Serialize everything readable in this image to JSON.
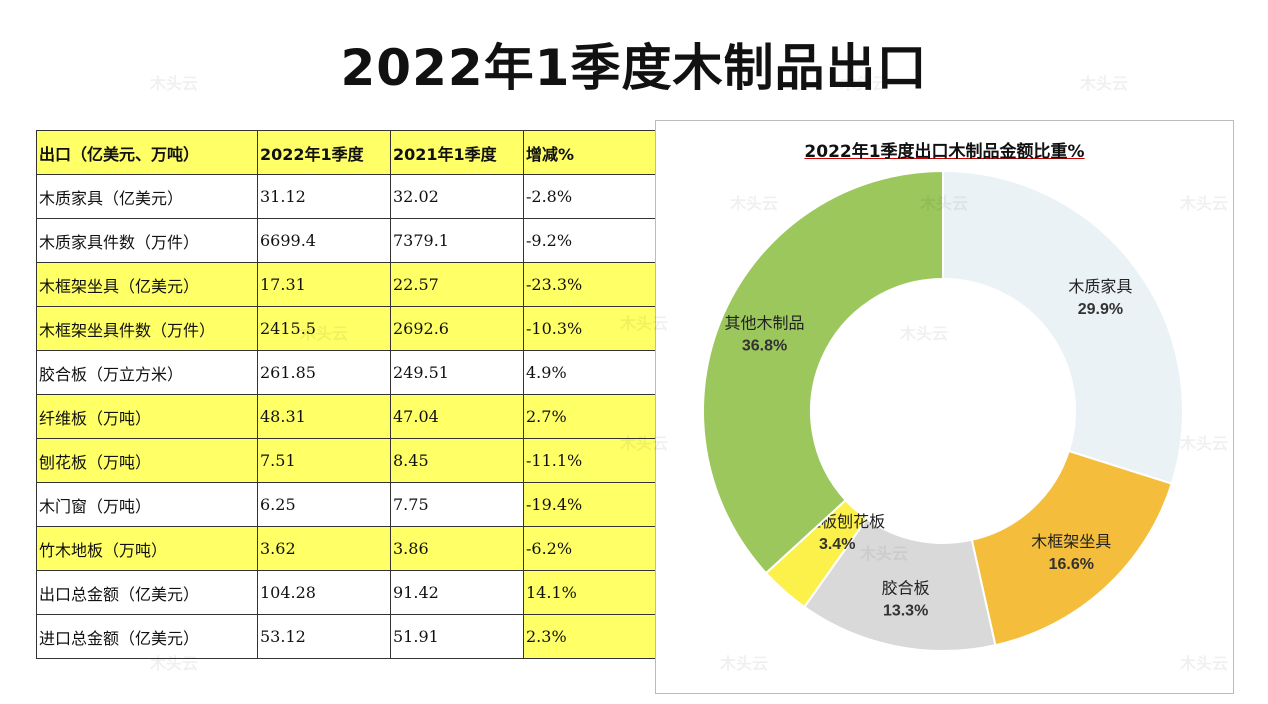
{
  "title": "2022年1季度木制品出口",
  "watermark": "木头云",
  "table": {
    "headers": [
      "出口（亿美元、万吨）",
      "2022年1季度",
      "2021年1季度",
      "增减%"
    ],
    "rows": [
      {
        "cells": [
          "木质家具（亿美元）",
          "31.12",
          "32.02",
          "-2.8%"
        ],
        "highlight": "none"
      },
      {
        "cells": [
          "木质家具件数（万件）",
          "6699.4",
          "7379.1",
          "-9.2%"
        ],
        "highlight": "none"
      },
      {
        "cells": [
          "木框架坐具（亿美元）",
          "17.31",
          "22.57",
          "-23.3%"
        ],
        "highlight": "row"
      },
      {
        "cells": [
          "木框架坐具件数（万件）",
          "2415.5",
          "2692.6",
          "-10.3%"
        ],
        "highlight": "row"
      },
      {
        "cells": [
          "胶合板（万立方米）",
          "261.85",
          "249.51",
          "4.9%"
        ],
        "highlight": "none"
      },
      {
        "cells": [
          "纤维板（万吨）",
          "48.31",
          "47.04",
          "2.7%"
        ],
        "highlight": "row"
      },
      {
        "cells": [
          "刨花板（万吨）",
          "7.51",
          "8.45",
          "-11.1%"
        ],
        "highlight": "row"
      },
      {
        "cells": [
          "木门窗（万吨）",
          "6.25",
          "7.75",
          "-19.4%"
        ],
        "highlight": "last"
      },
      {
        "cells": [
          "竹木地板（万吨）",
          "3.62",
          "3.86",
          "-6.2%"
        ],
        "highlight": "row"
      },
      {
        "cells": [
          "出口总金额（亿美元）",
          "104.28",
          "91.42",
          "14.1%"
        ],
        "highlight": "last"
      },
      {
        "cells": [
          "进口总金额（亿美元）",
          "53.12",
          "51.91",
          "2.3%"
        ],
        "highlight": "last"
      }
    ],
    "highlight_color": "#ffff66"
  },
  "chart_data": {
    "type": "pie",
    "donut": true,
    "title": "2022年1季度出口木制品金额比重%",
    "categories": [
      "木质家具",
      "木框架坐具",
      "胶合板",
      "纤维板刨花板",
      "其他木制品"
    ],
    "values": [
      29.9,
      16.6,
      13.3,
      3.4,
      36.8
    ],
    "labels": [
      "29.9%",
      "16.6%",
      "13.3%",
      "3.4%",
      "36.8%"
    ],
    "colors": [
      "#eaf2f6",
      "#f4bd3c",
      "#d9d9d9",
      "#fbf14a",
      "#9bc75c"
    ],
    "start": "top",
    "direction": "clockwise"
  }
}
